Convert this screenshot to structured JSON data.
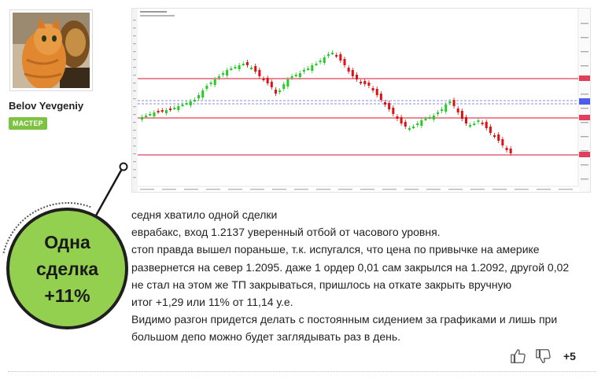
{
  "author": {
    "name": "Belov Yevgeniy",
    "role_badge": "МАСТЕР"
  },
  "bubble": {
    "lines": [
      "Одна",
      "сделка",
      "+11%"
    ],
    "color": "#93d04f"
  },
  "chart_image": {
    "description_icon": "price-chart",
    "colors": {
      "bull": "#22cc22",
      "bear": "#dd1111",
      "level": "#e0405a",
      "band": "#8a8ae6"
    }
  },
  "post": {
    "lines": [
      "седня хватило одной сделки",
      "еврабакс, вход 1.2137 уверенный отбой от часового уровня.",
      "стоп правда вышел пораньше, т.к. испугался, что цена по привычке на америке",
      "развернется на север 1.2095. даже 1 ордер 0,01 сам закрылся на 1.2092, другой 0,02",
      "не стал на этом же ТП закрываться, пришлось на откате закрыть вручную",
      "итог +1,29 или 11% от 11,14 у.е.",
      "Видимо разгон придется делать с постоянным сидением за графиками и лишь при",
      "большом депо можно будет заглядывать раз в день."
    ]
  },
  "votes": {
    "up_icon": "thumbs-up-icon",
    "down_icon": "thumbs-down-icon",
    "score": "+5"
  }
}
